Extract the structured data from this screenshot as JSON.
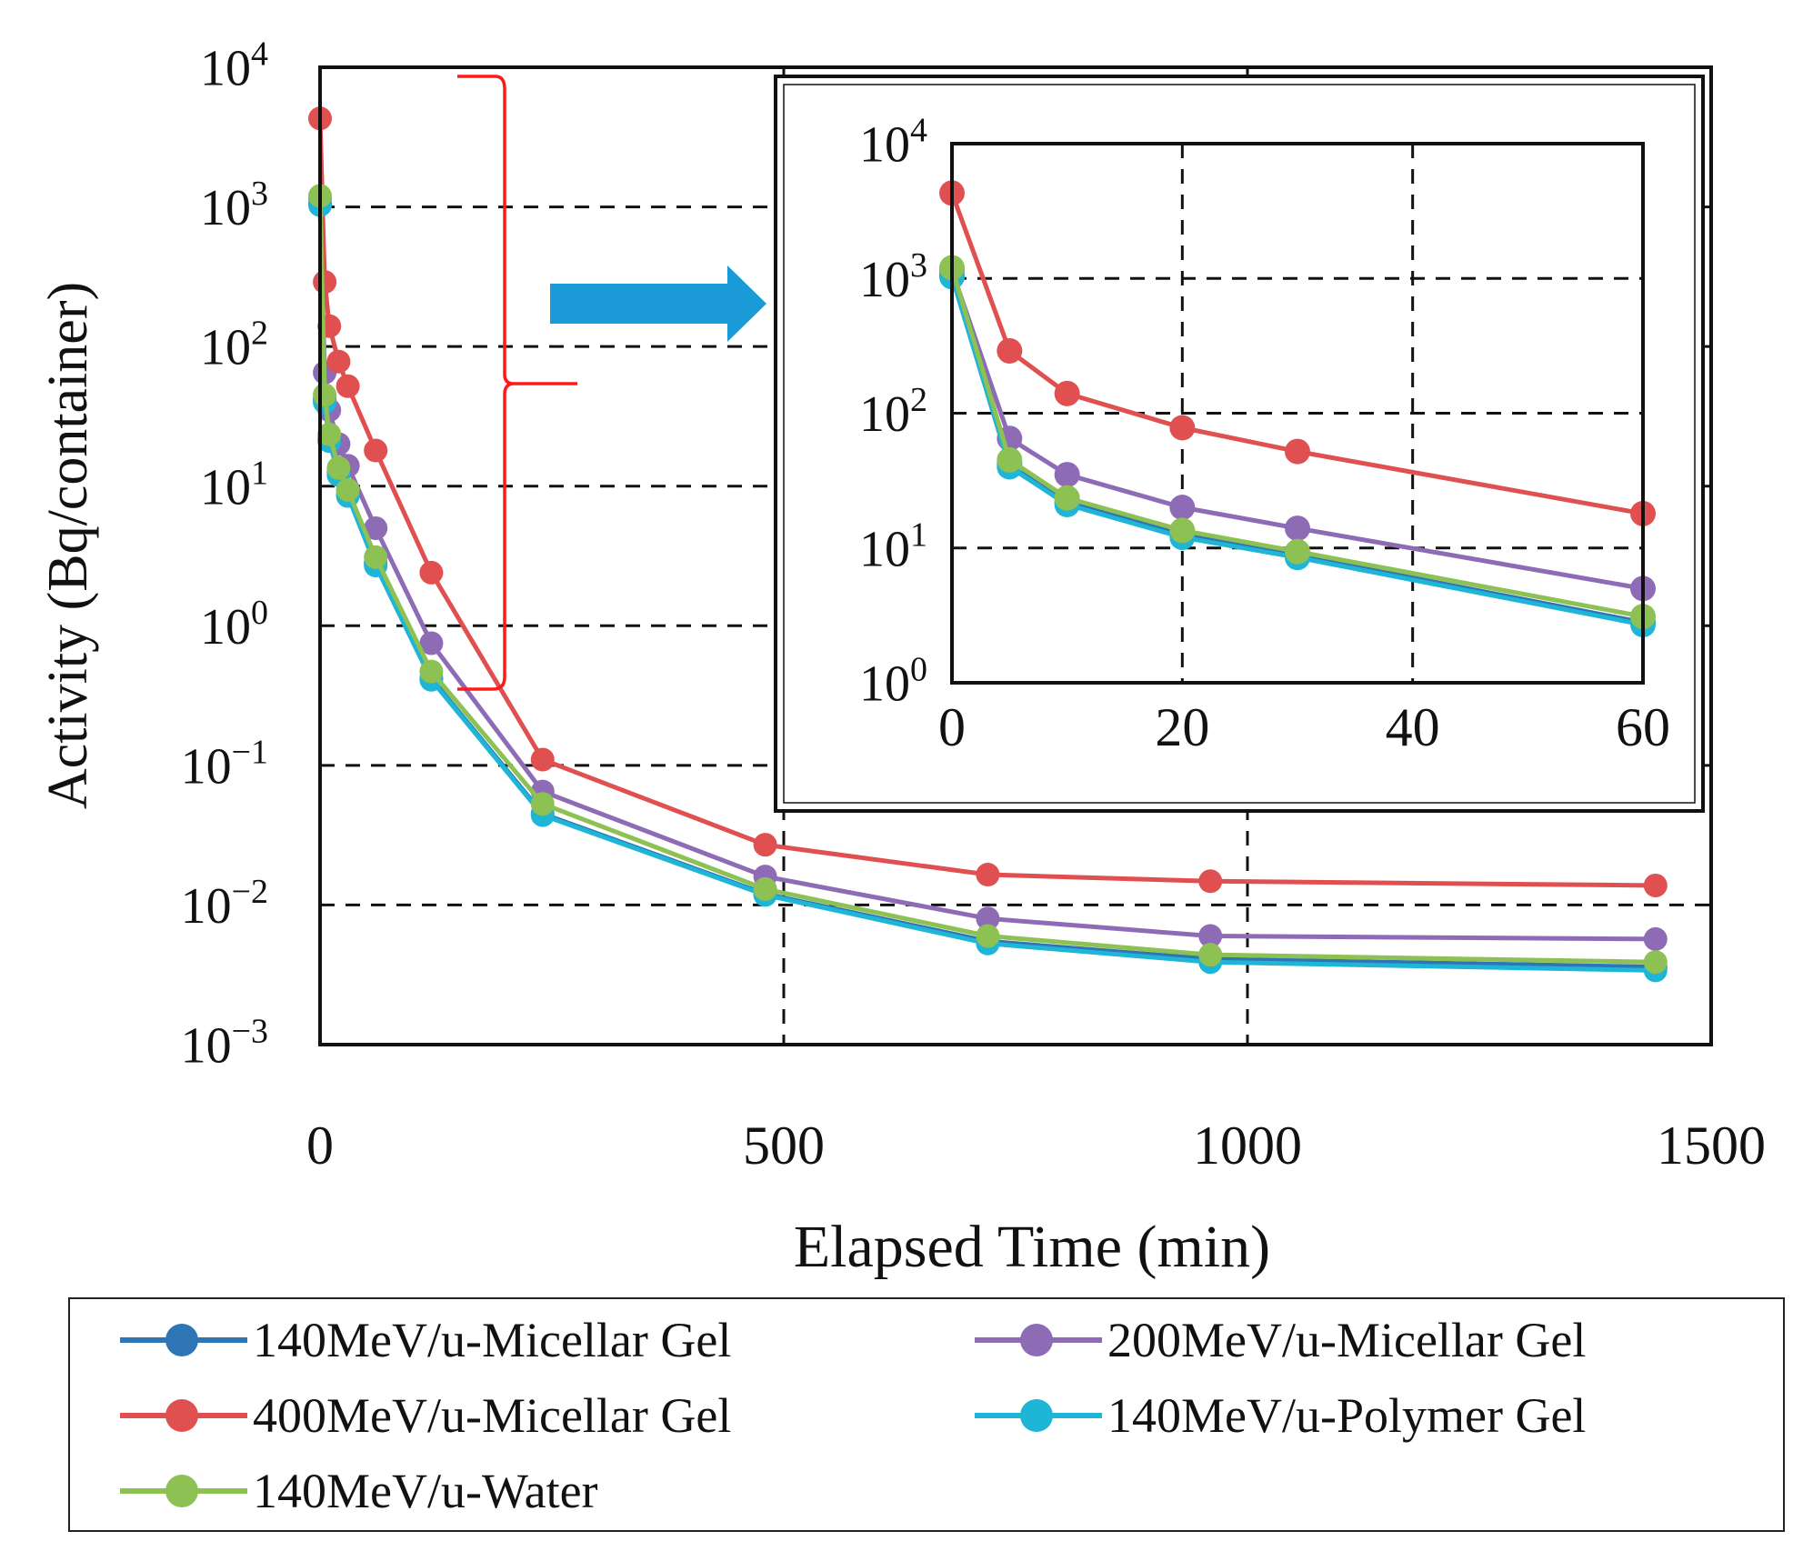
{
  "colors": {
    "s140_micellar": "#2e75b6",
    "s200_micellar": "#8e6bb5",
    "s400_micellar": "#e05050",
    "s140_polymer": "#1fb5d6",
    "s140_water": "#8dc153",
    "bracket": "#ff1a1a",
    "arrow": "#1a9ad6"
  },
  "chart_data": [
    {
      "id": "main",
      "type": "line",
      "xlabel": "Elapsed Time (min)",
      "ylabel": "Activity (Bq/container)",
      "yscale": "log",
      "xlim": [
        0,
        1500
      ],
      "ylim": [
        0.001,
        10000
      ],
      "xticks": [
        0,
        500,
        1000,
        1500
      ],
      "xtick_labels": [
        "0",
        "500",
        "1000",
        "1500"
      ],
      "ytick_exponents": [
        "4",
        "3",
        "2",
        "1",
        "0",
        "−1",
        "−2",
        "−3"
      ],
      "grid": "dashed",
      "legend_position": "bottom",
      "x": [
        0,
        5,
        10,
        20,
        30,
        60,
        120,
        240,
        480,
        720,
        960,
        1440
      ],
      "series": [
        {
          "name": "140MeV/u-Micellar Gel",
          "color_key": "s140_micellar",
          "values": [
            1050,
            42,
            22,
            12.5,
            8.8,
            2.8,
            0.42,
            0.045,
            0.012,
            0.0055,
            0.0041,
            0.0036
          ]
        },
        {
          "name": "200MeV/u-Micellar Gel",
          "color_key": "s200_micellar",
          "values": [
            1150,
            65,
            35,
            20,
            14,
            5,
            0.75,
            0.065,
            0.016,
            0.008,
            0.006,
            0.0057
          ]
        },
        {
          "name": "400MeV/u-Micellar Gel",
          "color_key": "s400_micellar",
          "values": [
            4300,
            290,
            140,
            78,
            52,
            18,
            2.4,
            0.11,
            0.027,
            0.0165,
            0.0148,
            0.0138
          ]
        },
        {
          "name": "140MeV/u-Polymer Gel",
          "color_key": "s140_polymer",
          "values": [
            1030,
            40,
            21,
            12,
            8.5,
            2.7,
            0.41,
            0.044,
            0.0118,
            0.0053,
            0.0039,
            0.0034
          ]
        },
        {
          "name": "140MeV/u-Water",
          "color_key": "s140_water",
          "values": [
            1200,
            45,
            23.5,
            13.5,
            9.4,
            3.1,
            0.47,
            0.053,
            0.013,
            0.006,
            0.0044,
            0.0039
          ]
        }
      ]
    },
    {
      "id": "inset",
      "type": "line",
      "yscale": "log",
      "xlim": [
        0,
        60
      ],
      "ylim": [
        1,
        10000
      ],
      "xticks": [
        0,
        20,
        40,
        60
      ],
      "xtick_labels": [
        "0",
        "20",
        "40",
        "60"
      ],
      "ytick_exponents": [
        "4",
        "3",
        "2",
        "1",
        "0"
      ],
      "grid": "dashed",
      "x": [
        0,
        5,
        10,
        20,
        30,
        60
      ],
      "series": [
        {
          "name": "140MeV/u-Micellar Gel",
          "color_key": "s140_micellar",
          "values": [
            1050,
            42,
            22,
            12.5,
            8.8,
            2.8
          ]
        },
        {
          "name": "200MeV/u-Micellar Gel",
          "color_key": "s200_micellar",
          "values": [
            1150,
            65,
            35,
            20,
            14,
            5
          ]
        },
        {
          "name": "400MeV/u-Micellar Gel",
          "color_key": "s400_micellar",
          "values": [
            4300,
            290,
            140,
            78,
            52,
            18
          ]
        },
        {
          "name": "140MeV/u-Polymer Gel",
          "color_key": "s140_polymer",
          "values": [
            1030,
            40,
            21,
            12,
            8.5,
            2.7
          ]
        },
        {
          "name": "140MeV/u-Water",
          "color_key": "s140_water",
          "values": [
            1200,
            45,
            23.5,
            13.5,
            9.4,
            3.1
          ]
        }
      ]
    }
  ],
  "legend": {
    "entries": [
      {
        "label": "140MeV/u-Micellar Gel",
        "color_key": "s140_micellar"
      },
      {
        "label": "200MeV/u-Micellar Gel",
        "color_key": "s200_micellar"
      },
      {
        "label": "400MeV/u-Micellar Gel",
        "color_key": "s400_micellar"
      },
      {
        "label": "140MeV/u-Polymer Gel",
        "color_key": "s140_polymer"
      },
      {
        "label": "140MeV/u-Water",
        "color_key": "s140_water"
      }
    ]
  }
}
